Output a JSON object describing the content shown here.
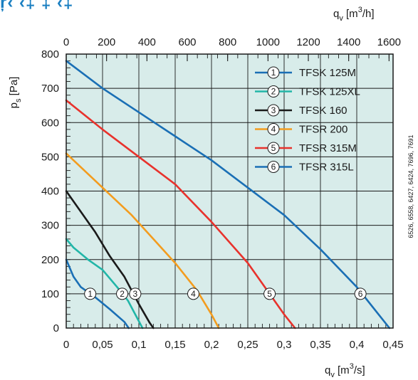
{
  "heading_fragment": "ŗ‹ ‹‡ ‡ ‹‡",
  "side_note": "6526, 6558, 6427, 6424, 7696, 7691",
  "chart_data": {
    "type": "line",
    "background_color": "#d8ecea",
    "grid": true,
    "x_bottom": {
      "label_main": "q",
      "label_sub": "v",
      "label_unit_pre": " [m",
      "label_unit_sup": "3",
      "label_unit_post": "/s]",
      "range": [
        0,
        0.45
      ],
      "ticks": [
        0,
        0.05,
        0.1,
        0.15,
        0.2,
        0.25,
        0.3,
        0.35,
        0.4,
        0.45
      ],
      "tick_labels": [
        "0",
        "0,05",
        "0,1",
        "0,15",
        "0,2",
        "0,25",
        "0,3",
        "0,35",
        "0,4",
        "0,45"
      ]
    },
    "x_top": {
      "label_main": "q",
      "label_sub": "v",
      "label_unit_pre": " [m",
      "label_unit_sup": "3",
      "label_unit_post": "/h]",
      "range": [
        0,
        1620
      ],
      "ticks": [
        0,
        200,
        400,
        600,
        800,
        1000,
        1200,
        1400,
        1600
      ],
      "tick_labels": [
        "0",
        "200",
        "400",
        "600",
        "800",
        "1000",
        "1200",
        "1400",
        "1600"
      ]
    },
    "y": {
      "label_main": "p",
      "label_sub": "s",
      "label_unit": " [Pa]",
      "range": [
        0,
        800
      ],
      "ticks": [
        0,
        100,
        200,
        300,
        400,
        500,
        600,
        700,
        800
      ],
      "tick_labels": [
        "0",
        "100",
        "200",
        "300",
        "400",
        "500",
        "600",
        "700",
        "800"
      ]
    },
    "legend_position": "top-right",
    "series": [
      {
        "id": "1",
        "name": "TFSK 125M",
        "color": "#1a6fb5",
        "marker": {
          "x": 0.033,
          "y": 100
        },
        "points": [
          [
            0,
            200
          ],
          [
            0.01,
            150
          ],
          [
            0.02,
            120
          ],
          [
            0.04,
            90
          ],
          [
            0.06,
            55
          ],
          [
            0.08,
            18
          ],
          [
            0.086,
            0
          ]
        ]
      },
      {
        "id": "2",
        "name": "TFSK 125XL",
        "color": "#22b6a8",
        "marker": {
          "x": 0.077,
          "y": 100
        },
        "points": [
          [
            0,
            260
          ],
          [
            0.01,
            235
          ],
          [
            0.03,
            200
          ],
          [
            0.05,
            170
          ],
          [
            0.07,
            120
          ],
          [
            0.085,
            80
          ],
          [
            0.1,
            20
          ],
          [
            0.105,
            0
          ]
        ]
      },
      {
        "id": "3",
        "name": "TFSK 160",
        "color": "#1a1a1a",
        "marker": {
          "x": 0.095,
          "y": 100
        },
        "points": [
          [
            0,
            400
          ],
          [
            0.02,
            340
          ],
          [
            0.04,
            280
          ],
          [
            0.06,
            210
          ],
          [
            0.08,
            150
          ],
          [
            0.1,
            70
          ],
          [
            0.115,
            15
          ],
          [
            0.12,
            0
          ]
        ]
      },
      {
        "id": "4",
        "name": "TFSR 200",
        "color": "#f39c1e",
        "marker": {
          "x": 0.175,
          "y": 100
        },
        "points": [
          [
            0,
            510
          ],
          [
            0.03,
            450
          ],
          [
            0.06,
            390
          ],
          [
            0.09,
            330
          ],
          [
            0.12,
            260
          ],
          [
            0.15,
            190
          ],
          [
            0.18,
            110
          ],
          [
            0.2,
            40
          ],
          [
            0.21,
            0
          ]
        ]
      },
      {
        "id": "5",
        "name": "TFSR 315M",
        "color": "#e8322c",
        "marker": {
          "x": 0.28,
          "y": 100
        },
        "points": [
          [
            0,
            665
          ],
          [
            0.05,
            580
          ],
          [
            0.1,
            500
          ],
          [
            0.15,
            420
          ],
          [
            0.2,
            310
          ],
          [
            0.25,
            190
          ],
          [
            0.28,
            100
          ],
          [
            0.3,
            40
          ],
          [
            0.315,
            0
          ]
        ]
      },
      {
        "id": "6",
        "name": "TFSR 315L",
        "color": "#1a6fb5",
        "marker": {
          "x": 0.405,
          "y": 100
        },
        "points": [
          [
            0,
            780
          ],
          [
            0.05,
            700
          ],
          [
            0.1,
            630
          ],
          [
            0.15,
            560
          ],
          [
            0.2,
            490
          ],
          [
            0.25,
            410
          ],
          [
            0.3,
            330
          ],
          [
            0.35,
            230
          ],
          [
            0.4,
            120
          ],
          [
            0.43,
            40
          ],
          [
            0.445,
            0
          ]
        ]
      }
    ]
  }
}
